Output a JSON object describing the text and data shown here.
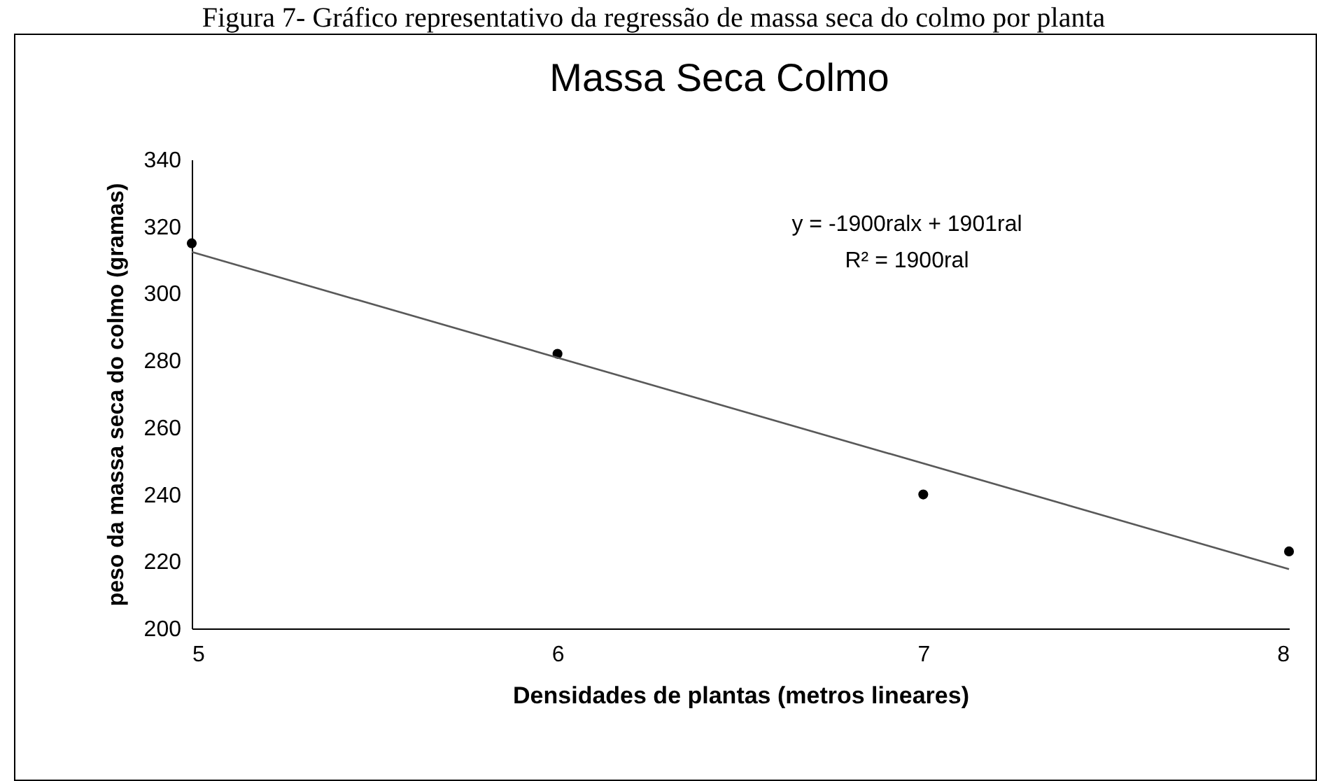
{
  "chart_data": {
    "type": "scatter",
    "title": "Massa Seca Colmo",
    "xlabel": "Densidades de plantas (metros lineares)",
    "ylabel": "peso da massa seca do colmo (gramas)",
    "annotations": [
      "Figura 7- Gráfico representativo da regressão de massa seca do colmo por planta",
      "y = -1900ralx + 1901ral",
      "R² = 1900ral"
    ],
    "x": [
      5,
      6,
      7,
      8
    ],
    "series": [
      {
        "color": "#000000",
        "values": [
          315,
          282,
          240,
          223
        ]
      },
      {
        "type": "line",
        "color": "#595959",
        "x": [
          5,
          8
        ],
        "values": [
          312.4,
          217.7
        ]
      }
    ],
    "xlim": [
      5,
      8
    ],
    "xticks": [
      5,
      6,
      7,
      8
    ],
    "ylim": [
      200,
      340
    ],
    "yticks": [
      200,
      220,
      240,
      260,
      280,
      300,
      320,
      340
    ],
    "grid": false
  }
}
